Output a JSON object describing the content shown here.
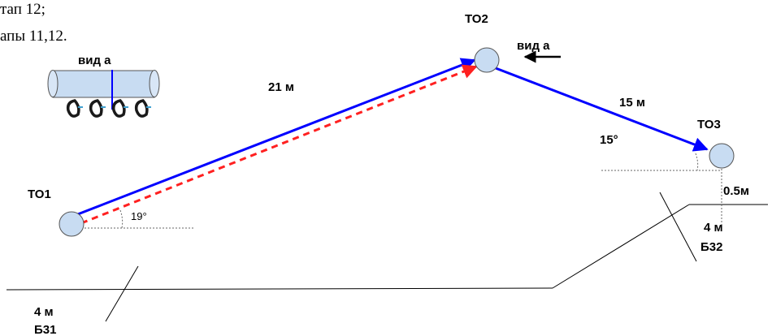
{
  "header": {
    "line1": "тап 12;",
    "line2": "апы 11,12."
  },
  "points": {
    "to1": "ТО1",
    "to2": "ТО2",
    "to3": "ТО3"
  },
  "distances": {
    "to1_to2": "21 м",
    "to2_to3": "15 м"
  },
  "angles": {
    "to1": "19°",
    "to3": "15°"
  },
  "view": {
    "label_small": "вид а",
    "label_arrow": "вид а"
  },
  "offsets": {
    "to3_height": "0.5м"
  },
  "belays": {
    "b31_dist": "4 м",
    "b31_name": "Б31",
    "b32_dist": "4 м",
    "b32_name": "Б32"
  },
  "colors": {
    "main_rope": "#0000ff",
    "dashed_rope": "#ff2020",
    "point_fill": "#c8dcf2"
  }
}
